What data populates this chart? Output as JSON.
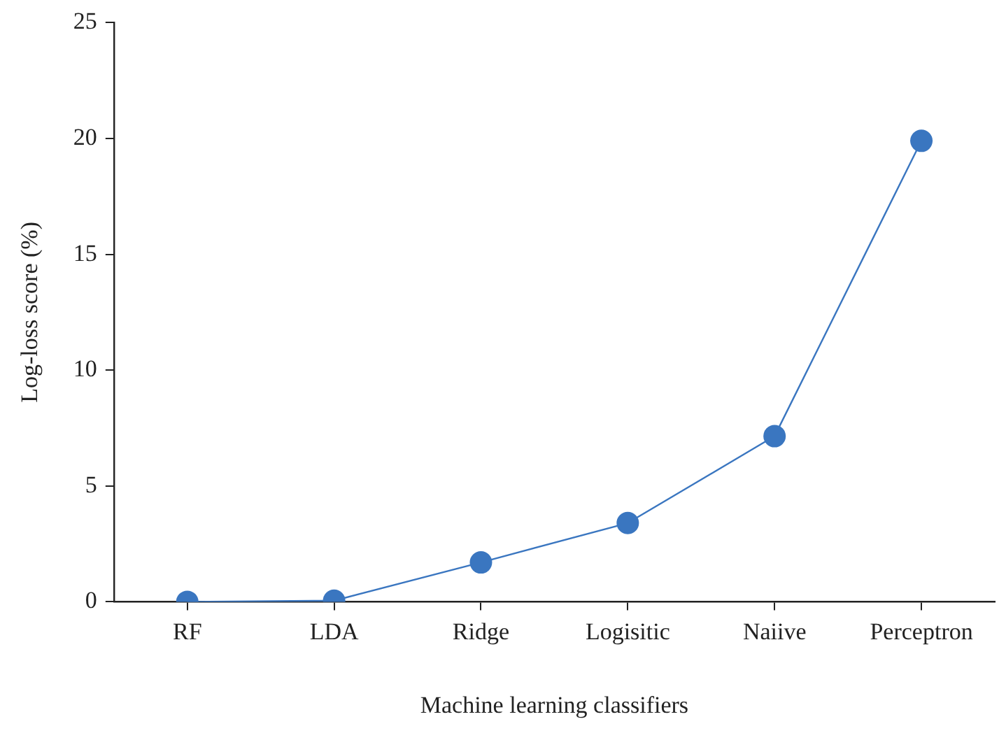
{
  "chart_data": {
    "type": "line",
    "xlabel": "Machine learning classifiers",
    "ylabel": "Log-loss score (%)",
    "categories": [
      "RF",
      "LDA",
      "Ridge",
      "Logisitic",
      "Naiive",
      "Perceptron"
    ],
    "series": [
      {
        "color": "#3a76c0",
        "values": [
          0,
          0.05,
          1.7,
          3.4,
          7.15,
          19.9
        ]
      }
    ],
    "ylim": [
      0,
      25
    ],
    "yticks": [
      0,
      5,
      10,
      15,
      20,
      25
    ],
    "grid": false,
    "legend": false,
    "marker": "circle",
    "line_style": "solid"
  }
}
